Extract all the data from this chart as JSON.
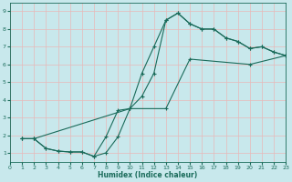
{
  "xlabel": "Humidex (Indice chaleur)",
  "bg_color": "#c8e8ec",
  "grid_color": "#e8b8b8",
  "line_color": "#1a6b5a",
  "xlim": [
    0,
    23
  ],
  "ylim": [
    0.5,
    9.5
  ],
  "xticks": [
    0,
    1,
    2,
    3,
    4,
    5,
    6,
    7,
    8,
    9,
    10,
    11,
    12,
    13,
    14,
    15,
    16,
    17,
    18,
    19,
    20,
    21,
    22,
    23
  ],
  "yticks": [
    1,
    2,
    3,
    4,
    5,
    6,
    7,
    8,
    9
  ],
  "line1_x": [
    1,
    2,
    3,
    4,
    5,
    6,
    7,
    8,
    9,
    10,
    11,
    12,
    13,
    14,
    15,
    16,
    17,
    18,
    19,
    20,
    21,
    22,
    23
  ],
  "line1_y": [
    1.8,
    1.8,
    1.25,
    1.1,
    1.05,
    1.05,
    0.8,
    1.0,
    1.9,
    3.5,
    5.5,
    7.0,
    8.5,
    8.9,
    8.3,
    8.0,
    8.0,
    7.5,
    7.3,
    6.9,
    7.0,
    6.7,
    6.5
  ],
  "line2_x": [
    1,
    2,
    3,
    4,
    5,
    6,
    7,
    8,
    9,
    10,
    11,
    12,
    13,
    14,
    15,
    16,
    17,
    18,
    19,
    20,
    21,
    22,
    23
  ],
  "line2_y": [
    1.8,
    1.8,
    1.25,
    1.1,
    1.05,
    1.05,
    0.8,
    1.9,
    3.4,
    3.5,
    4.2,
    5.5,
    8.5,
    8.9,
    8.3,
    8.0,
    8.0,
    7.5,
    7.3,
    6.9,
    7.0,
    6.7,
    6.5
  ],
  "line3_x": [
    1,
    2,
    10,
    13,
    15,
    20,
    23
  ],
  "line3_y": [
    1.8,
    1.8,
    3.5,
    3.5,
    6.3,
    6.0,
    6.5
  ]
}
